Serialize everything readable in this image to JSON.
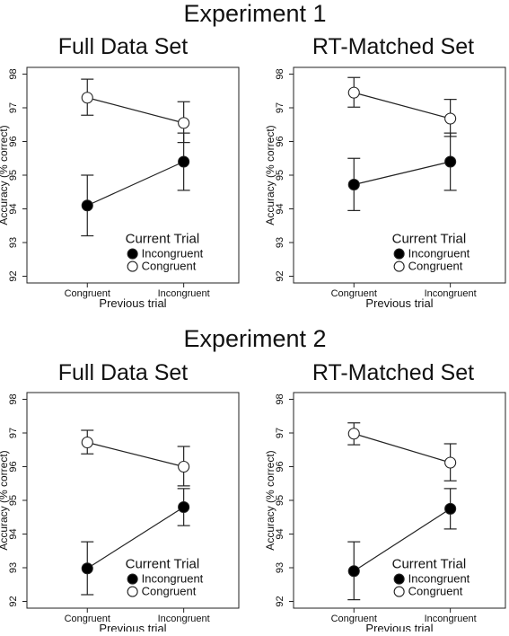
{
  "experiments": [
    {
      "title": "Experiment 1",
      "panels": [
        {
          "title": "Full Data Set",
          "chart": {
            "type": "line",
            "ylabel": "Accuracy (% correct)",
            "xlabel": "Previous trial",
            "categories": [
              "Congruent",
              "Incongruent"
            ],
            "ylim": [
              91.8,
              98.2
            ],
            "yticks": [
              "92",
              "93",
              "94",
              "95",
              "96",
              "97",
              "98"
            ],
            "legend_title": "Current Trial",
            "series": [
              {
                "name": "Incongruent",
                "marker": "filled",
                "values": [
                  94.1,
                  95.4
                ],
                "lower": [
                  93.2,
                  94.55
                ],
                "upper": [
                  95.0,
                  96.25
                ]
              },
              {
                "name": "Congruent",
                "marker": "open",
                "values": [
                  97.3,
                  96.55
                ],
                "lower": [
                  96.78,
                  95.97
                ],
                "upper": [
                  97.85,
                  97.18
                ]
              }
            ]
          }
        },
        {
          "title": "RT-Matched Set",
          "chart": {
            "type": "line",
            "ylabel": "Accuracy (% correct)",
            "xlabel": "Previous trial",
            "categories": [
              "Congruent",
              "Incongruent"
            ],
            "ylim": [
              91.8,
              98.2
            ],
            "yticks": [
              "92",
              "93",
              "94",
              "95",
              "96",
              "97",
              "98"
            ],
            "legend_title": "Current Trial",
            "series": [
              {
                "name": "Incongruent",
                "marker": "filled",
                "values": [
                  94.72,
                  95.4
                ],
                "lower": [
                  93.95,
                  94.55
                ],
                "upper": [
                  95.5,
                  96.25
                ]
              },
              {
                "name": "Congruent",
                "marker": "open",
                "values": [
                  97.45,
                  96.68
                ],
                "lower": [
                  97.02,
                  96.15
                ],
                "upper": [
                  97.9,
                  97.25
                ]
              }
            ]
          }
        }
      ]
    },
    {
      "title": "Experiment 2",
      "panels": [
        {
          "title": "Full Data Set",
          "chart": {
            "type": "line",
            "ylabel": "Accuracy (% correct)",
            "xlabel": "Previous trial",
            "categories": [
              "Congruent",
              "Incongruent"
            ],
            "ylim": [
              91.8,
              98.2
            ],
            "yticks": [
              "92",
              "93",
              "94",
              "95",
              "96",
              "97",
              "98"
            ],
            "legend_title": "Current Trial",
            "series": [
              {
                "name": "Incongruent",
                "marker": "filled",
                "values": [
                  92.98,
                  94.8
                ],
                "lower": [
                  92.2,
                  94.25
                ],
                "upper": [
                  93.77,
                  95.35
                ]
              },
              {
                "name": "Congruent",
                "marker": "open",
                "values": [
                  96.72,
                  96.0
                ],
                "lower": [
                  96.38,
                  95.43
                ],
                "upper": [
                  97.08,
                  96.6
                ]
              }
            ]
          }
        },
        {
          "title": "RT-Matched Set",
          "chart": {
            "type": "line",
            "ylabel": "Accuracy (% correct)",
            "xlabel": "Previous trial",
            "categories": [
              "Congruent",
              "Incongruent"
            ],
            "ylim": [
              91.8,
              98.2
            ],
            "yticks": [
              "92",
              "93",
              "94",
              "95",
              "96",
              "97",
              "98"
            ],
            "legend_title": "Current Trial",
            "series": [
              {
                "name": "Incongruent",
                "marker": "filled",
                "values": [
                  92.9,
                  94.75
                ],
                "lower": [
                  92.05,
                  94.15
                ],
                "upper": [
                  93.77,
                  95.35
                ]
              },
              {
                "name": "Congruent",
                "marker": "open",
                "values": [
                  96.98,
                  96.12
                ],
                "lower": [
                  96.65,
                  95.58
                ],
                "upper": [
                  97.3,
                  96.68
                ]
              }
            ]
          }
        }
      ]
    }
  ],
  "chart_data": [
    {
      "type": "line",
      "title": "Full Data Set",
      "xlabel": "Previous trial",
      "ylabel": "Accuracy (% correct)",
      "categories": [
        "Congruent",
        "Incongruent"
      ],
      "ylim": [
        91.8,
        98.2
      ],
      "legend": "Current Trial",
      "series": [
        {
          "name": "Incongruent",
          "values": [
            94.1,
            95.4
          ]
        },
        {
          "name": "Congruent",
          "values": [
            97.3,
            96.55
          ]
        }
      ]
    },
    {
      "type": "line",
      "title": "RT-Matched Set",
      "xlabel": "Previous trial",
      "ylabel": "Accuracy (% correct)",
      "categories": [
        "Congruent",
        "Incongruent"
      ],
      "ylim": [
        91.8,
        98.2
      ],
      "legend": "Current Trial",
      "series": [
        {
          "name": "Incongruent",
          "values": [
            94.72,
            95.4
          ]
        },
        {
          "name": "Congruent",
          "values": [
            97.45,
            96.68
          ]
        }
      ]
    },
    {
      "type": "line",
      "title": "Full Data Set",
      "xlabel": "Previous trial",
      "ylabel": "Accuracy (% correct)",
      "categories": [
        "Congruent",
        "Incongruent"
      ],
      "ylim": [
        91.8,
        98.2
      ],
      "legend": "Current Trial",
      "series": [
        {
          "name": "Incongruent",
          "values": [
            92.98,
            94.8
          ]
        },
        {
          "name": "Congruent",
          "values": [
            96.72,
            96.0
          ]
        }
      ]
    },
    {
      "type": "line",
      "title": "RT-Matched Set",
      "xlabel": "Previous trial",
      "ylabel": "Accuracy (% correct)",
      "categories": [
        "Congruent",
        "Incongruent"
      ],
      "ylim": [
        91.8,
        98.2
      ],
      "legend": "Current Trial",
      "series": [
        {
          "name": "Incongruent",
          "values": [
            92.9,
            94.75
          ]
        },
        {
          "name": "Congruent",
          "values": [
            96.98,
            96.12
          ]
        }
      ]
    }
  ]
}
